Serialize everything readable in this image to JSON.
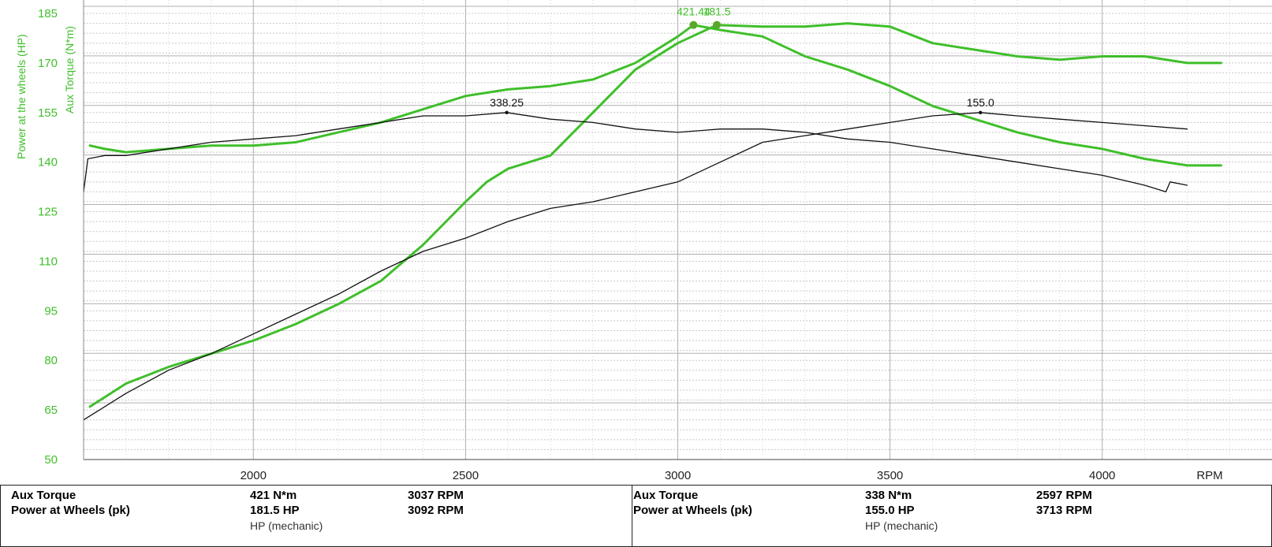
{
  "chart_data": {
    "type": "line",
    "x_unit_label": "RPM",
    "y_label_primary": "Power at the wheels (HP)",
    "y_label_secondary": "Aux Torque (N*m)",
    "xlim": [
      1600,
      4400
    ],
    "ylim": [
      50,
      185
    ],
    "x_ticks": [
      2000,
      2500,
      3000,
      3500,
      4000
    ],
    "y_ticks": [
      50,
      65,
      80,
      95,
      110,
      125,
      140,
      155,
      170,
      185
    ],
    "grid": true,
    "series": [
      {
        "color": "#3fbf2a",
        "x": [
          1615,
          1650,
          1700,
          1800,
          1900,
          2000,
          2100,
          2200,
          2300,
          2400,
          2500,
          2600,
          2700,
          2800,
          2900,
          3000,
          3037,
          3100,
          3200,
          3300,
          3400,
          3500,
          3600,
          3700,
          3800,
          3900,
          4000,
          4100,
          4200,
          4250,
          4280
        ],
        "y": [
          145,
          144,
          143,
          144,
          145,
          145,
          146,
          149,
          152,
          156,
          160,
          162,
          163,
          165,
          170,
          178,
          181.5,
          180,
          178,
          172,
          168,
          163,
          157,
          153,
          149,
          146,
          144,
          141,
          139,
          139,
          139
        ]
      },
      {
        "color": "#3fbf2a",
        "x": [
          1615,
          1700,
          1800,
          1900,
          2000,
          2100,
          2200,
          2300,
          2400,
          2500,
          2550,
          2600,
          2700,
          2800,
          2900,
          3000,
          3092,
          3200,
          3300,
          3400,
          3500,
          3600,
          3700,
          3800,
          3900,
          4000,
          4100,
          4200,
          4280
        ],
        "y": [
          66,
          73,
          78,
          82,
          86,
          91,
          97,
          104,
          115,
          128,
          134,
          138,
          142,
          155,
          168,
          176,
          181.5,
          181,
          181,
          182,
          181,
          176,
          174,
          172,
          171,
          172,
          172,
          170,
          170
        ]
      },
      {
        "color": "#111111",
        "x": [
          1600,
          1610,
          1650,
          1700,
          1800,
          1900,
          2000,
          2100,
          2200,
          2300,
          2400,
          2500,
          2597,
          2700,
          2800,
          2900,
          3000,
          3100,
          3200,
          3300,
          3400,
          3500,
          3600,
          3700,
          3800,
          3900,
          4000,
          4100,
          4150,
          4160,
          4200
        ],
        "y": [
          131,
          141,
          142,
          142,
          144,
          146,
          147,
          148,
          150,
          152,
          154,
          154,
          155,
          153,
          152,
          150,
          149,
          150,
          150,
          149,
          147,
          146,
          144,
          142,
          140,
          138,
          136,
          133,
          131,
          134,
          133
        ]
      },
      {
        "color": "#111111",
        "x": [
          1600,
          1700,
          1800,
          1900,
          2000,
          2100,
          2200,
          2300,
          2400,
          2500,
          2600,
          2700,
          2800,
          2900,
          3000,
          3100,
          3200,
          3300,
          3400,
          3500,
          3600,
          3713,
          3800,
          3900,
          4000,
          4100,
          4200
        ],
        "y": [
          62,
          70,
          77,
          82,
          88,
          94,
          100,
          107,
          113,
          117,
          122,
          126,
          128,
          131,
          134,
          140,
          146,
          148,
          150,
          152,
          154,
          155,
          154,
          153,
          152,
          151,
          150
        ]
      }
    ],
    "annotations": [
      {
        "text": "338.25",
        "x": 2597,
        "y": 155,
        "color": "#111111"
      },
      {
        "text": "155.0",
        "x": 3713,
        "y": 155,
        "color": "#111111"
      },
      {
        "text": "421.44",
        "x": 3037,
        "y": 181.5,
        "color": "#3fbf2a"
      },
      {
        "text": "181.5",
        "x": 3092,
        "y": 181.5,
        "color": "#3fbf2a"
      }
    ]
  },
  "summary": {
    "left": {
      "row1": {
        "label": "Aux Torque",
        "value": "421 N*m",
        "rpm": "3037 RPM"
      },
      "row2": {
        "label": "Power at Wheels (pk)",
        "value": "181.5 HP",
        "rpm": "3092 RPM"
      },
      "unit": "HP (mechanic)"
    },
    "right": {
      "row1": {
        "label": "Aux Torque",
        "value": "338 N*m",
        "rpm": "2597 RPM"
      },
      "row2": {
        "label": "Power at Wheels (pk)",
        "value": "155.0 HP",
        "rpm": "3713 RPM"
      },
      "unit": "HP (mechanic)"
    }
  }
}
